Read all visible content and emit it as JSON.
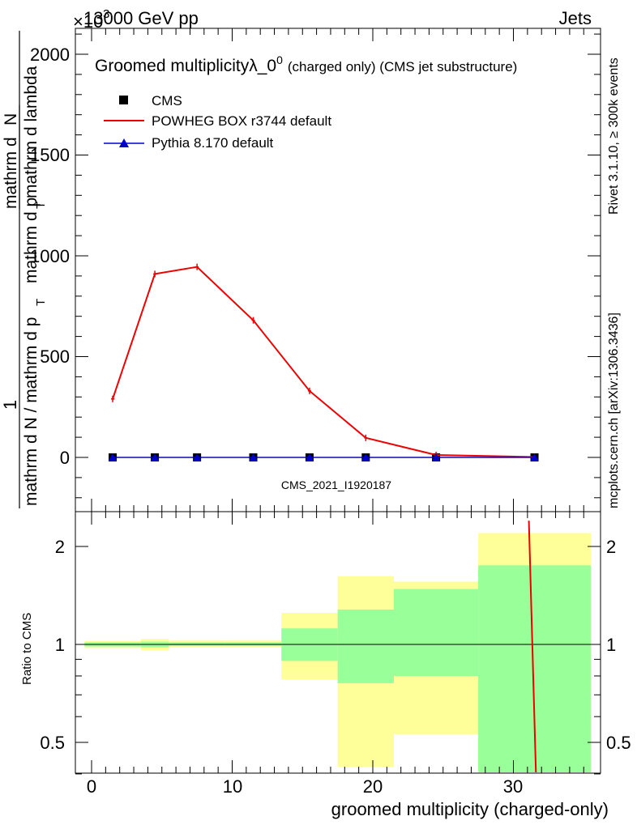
{
  "header": {
    "energy_label": "13000 GeV pp",
    "category_label": "Jets",
    "exponent_prefix": "×10",
    "exponent_value": "3"
  },
  "side_labels": {
    "rivet": "Rivet 3.1.10, ≥ 300k events",
    "mcplots": "mcplots.cern.ch [arXiv:1306.3436]"
  },
  "main_plot": {
    "title_main": "Groomed multiplicity",
    "title_lambda": "λ_0",
    "title_sup": "0",
    "title_suffix": "(charged only) (CMS jet substructure)",
    "ylabel_fraction_one": "1",
    "ylabel_numerator": "mathrm d",
    "ylabel_numerator_N": "N",
    "ylabel_numerator_denom": "mathrm d p",
    "ylabel_numerator_denom_sub": "T",
    "ylabel_numerator_denom_suffix": " mathrm d lambda",
    "ylabel_denominator": "mathrm d N / mathrm d p",
    "ylabel_denominator_sub": "T",
    "watermark": "CMS_2021_I1920187",
    "yticks": [
      "0",
      "500",
      "1000",
      "1500",
      "2000"
    ]
  },
  "legend": [
    {
      "label": "CMS",
      "color": "#000000",
      "marker": "square"
    },
    {
      "label": "POWHEG BOX r3744 default",
      "color": "#ee0000",
      "marker": "line"
    },
    {
      "label": "Pythia 8.170 default",
      "color": "#0000cc",
      "marker": "triangle"
    }
  ],
  "ratio_plot": {
    "ylabel": "Ratio to CMS",
    "xlabel": "groomed multiplicity (charged-only)",
    "yticks": [
      "0.5",
      "1",
      "2"
    ],
    "xticks": [
      "0",
      "10",
      "20",
      "30"
    ]
  },
  "chart_data": [
    {
      "type": "line",
      "title": "Groomed multiplicity λ_0^0 (charged only) (CMS jet substructure)",
      "xlim": [
        -1,
        36
      ],
      "ylim": [
        -250,
        2130
      ],
      "ylabel_scale": 1000,
      "series": [
        {
          "name": "CMS",
          "x": [
            1.5,
            4.5,
            7.5,
            11.5,
            15.5,
            19.5,
            24.5,
            31.5
          ],
          "values": [
            0,
            0,
            0,
            0,
            0,
            0,
            0,
            0
          ],
          "color": "#000000"
        },
        {
          "name": "POWHEG BOX r3744 default",
          "x": [
            1.5,
            4.5,
            7.5,
            11.5,
            15.5,
            19.5,
            24.5,
            31.5
          ],
          "values": [
            290,
            910,
            945,
            680,
            330,
            97,
            12,
            2
          ],
          "color": "#ee0000"
        },
        {
          "name": "Pythia 8.170 default",
          "x": [
            1.5,
            4.5,
            7.5,
            11.5,
            15.5,
            19.5,
            24.5,
            31.5
          ],
          "values": [
            0,
            0,
            0,
            0,
            0,
            0,
            0,
            0
          ],
          "color": "#0000cc"
        }
      ]
    },
    {
      "type": "area",
      "ylabel": "Ratio to CMS",
      "xlabel": "groomed multiplicity (charged-only)",
      "xlim": [
        -1,
        36
      ],
      "ylim": [
        0.35,
        2.4
      ],
      "yscale": "log",
      "bands": [
        {
          "x0": -0.5,
          "x1": 3.5,
          "yellow": [
            0.975,
            1.025
          ],
          "green": [
            0.985,
            1.015
          ]
        },
        {
          "x0": 3.5,
          "x1": 5.5,
          "yellow": [
            0.96,
            1.04
          ],
          "green": [
            0.98,
            1.02
          ]
        },
        {
          "x0": 5.5,
          "x1": 9.5,
          "yellow": [
            0.98,
            1.03
          ],
          "green": [
            0.99,
            1.015
          ]
        },
        {
          "x0": 9.5,
          "x1": 13.5,
          "yellow": [
            0.98,
            1.03
          ],
          "green": [
            0.99,
            1.015
          ]
        },
        {
          "x0": 13.5,
          "x1": 17.5,
          "yellow": [
            0.78,
            1.25
          ],
          "green": [
            0.89,
            1.12
          ]
        },
        {
          "x0": 17.5,
          "x1": 21.5,
          "yellow": [
            0.42,
            1.62
          ],
          "green": [
            0.76,
            1.28
          ]
        },
        {
          "x0": 21.5,
          "x1": 27.5,
          "yellow": [
            0.53,
            1.56
          ],
          "green": [
            0.8,
            1.48
          ]
        },
        {
          "x0": 27.5,
          "x1": 35.5,
          "yellow": [
            0.35,
            2.2
          ],
          "green": [
            0.35,
            1.75
          ]
        }
      ],
      "series": [
        {
          "name": "POWHEG BOX r3744 default",
          "x": [
            31.1,
            31.6
          ],
          "values": [
            2.4,
            0.35
          ],
          "color": "#ee0000"
        }
      ]
    }
  ]
}
